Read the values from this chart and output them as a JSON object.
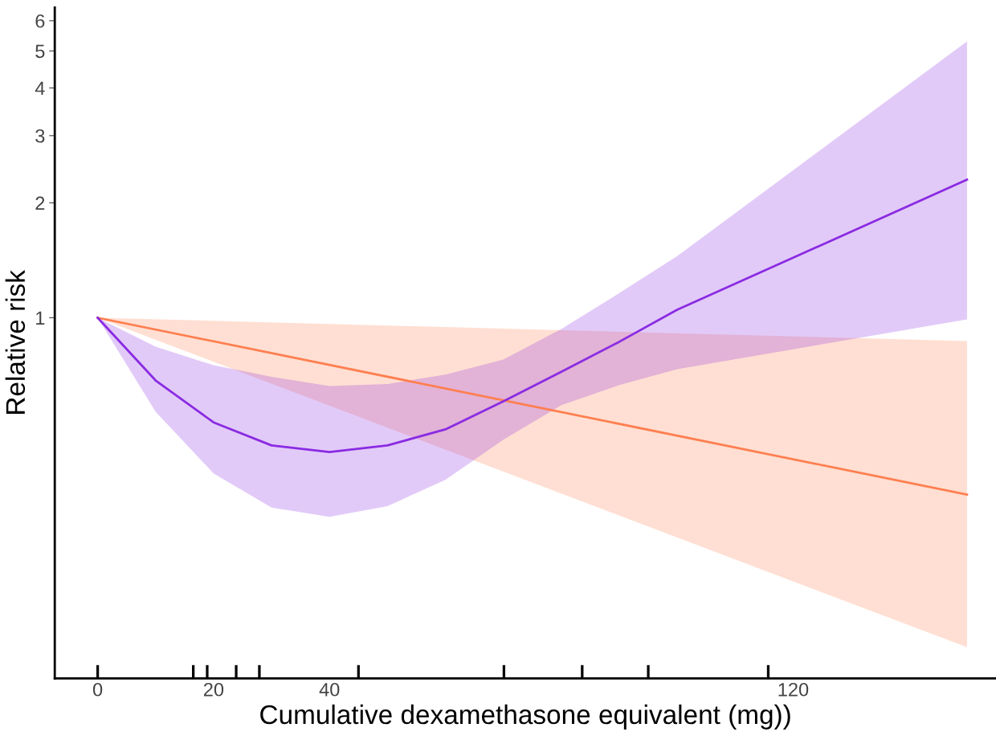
{
  "chart_data": {
    "type": "line",
    "xlabel": "Cumulative dexamethasone equivalent (mg))",
    "ylabel": "Relative risk",
    "log": "y",
    "xlim": [
      -7.4,
      155
    ],
    "xticks": [
      0,
      20,
      40,
      120
    ],
    "ylim": [
      0.1135,
      6.5
    ],
    "yticks": [
      1,
      2,
      3,
      4,
      5,
      6
    ],
    "grid": false,
    "series": [
      {
        "color": "#ff7f50",
        "x": [
          0,
          150
        ],
        "values": [
          1.0,
          0.344
        ],
        "lower": [
          1.0,
          0.137
        ],
        "upper": [
          1.0,
          0.869
        ]
      },
      {
        "color": "#8a2be2",
        "x": [
          0,
          10,
          20,
          30,
          40,
          50,
          60,
          70,
          80,
          90,
          100,
          150
        ],
        "values": [
          1.0,
          0.685,
          0.532,
          0.463,
          0.445,
          0.463,
          0.51,
          0.604,
          0.722,
          0.865,
          1.05,
          2.3
        ],
        "lower": [
          1.0,
          0.567,
          0.391,
          0.318,
          0.301,
          0.321,
          0.376,
          0.479,
          0.59,
          0.666,
          0.733,
          0.99
        ],
        "upper": [
          1.0,
          0.84,
          0.751,
          0.7,
          0.662,
          0.67,
          0.71,
          0.777,
          0.934,
          1.16,
          1.45,
          5.3
        ]
      },
      {
        "type": "bar",
        "color": "#000000",
        "x": [
          0,
          16.5,
          18.9,
          23.9,
          27.9,
          45,
          70.1,
          83.6,
          95,
          115.7
        ],
        "base": [
          0.1135,
          0.1135,
          0.1135,
          0.1135,
          0.1135,
          0.1135,
          0.1135,
          0.1135,
          0.1135,
          0.1135
        ],
        "values": [
          0.0095,
          0.0095,
          0.0095,
          0.0095,
          0.0095,
          0.0095,
          0.0095,
          0.0095,
          0.0095,
          0.0095
        ]
      }
    ]
  }
}
